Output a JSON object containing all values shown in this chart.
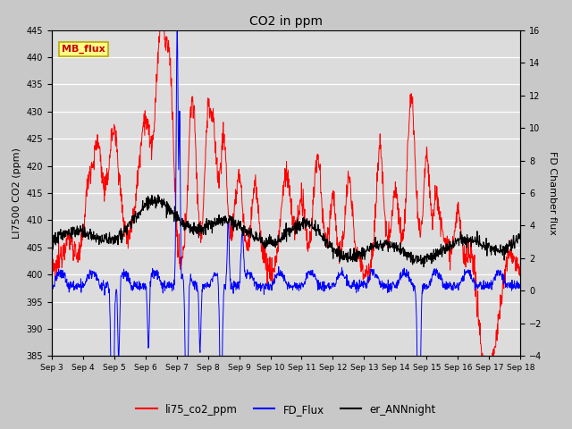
{
  "title": "CO2 in ppm",
  "ylabel_left": "LI7500 CO2 (ppm)",
  "ylabel_right": "FD Chamber flux",
  "ylim_left": [
    385,
    445
  ],
  "ylim_right": [
    -4,
    16
  ],
  "yticks_left": [
    385,
    390,
    395,
    400,
    405,
    410,
    415,
    420,
    425,
    430,
    435,
    440,
    445
  ],
  "yticks_right": [
    -4,
    -2,
    0,
    2,
    4,
    6,
    8,
    10,
    12,
    14,
    16
  ],
  "fig_bg_color": "#c8c8c8",
  "plot_bg_color": "#dcdcdc",
  "grid_color": "#ffffff",
  "line_red": "#ff0000",
  "line_blue": "#0000ff",
  "line_black": "#000000",
  "mb_flux_bg": "#ffff88",
  "mb_flux_border": "#bbaa00",
  "mb_flux_text_color": "#cc0000",
  "legend_labels": [
    "li75_co2_ppm",
    "FD_Flux",
    "er_ANNnight"
  ],
  "x_start": 3,
  "x_end": 18,
  "x_ticks": [
    3,
    4,
    5,
    6,
    7,
    8,
    9,
    10,
    11,
    12,
    13,
    14,
    15,
    16,
    17,
    18
  ],
  "x_tick_labels": [
    "Sep 3",
    "Sep 4",
    "Sep 5",
    "Sep 6",
    "Sep 7",
    "Sep 8",
    "Sep 9",
    "Sep 10",
    "Sep 11",
    "Sep 12",
    "Sep 13",
    "Sep 14",
    "Sep 15",
    "Sep 16",
    "Sep 17",
    "Sep 18"
  ]
}
